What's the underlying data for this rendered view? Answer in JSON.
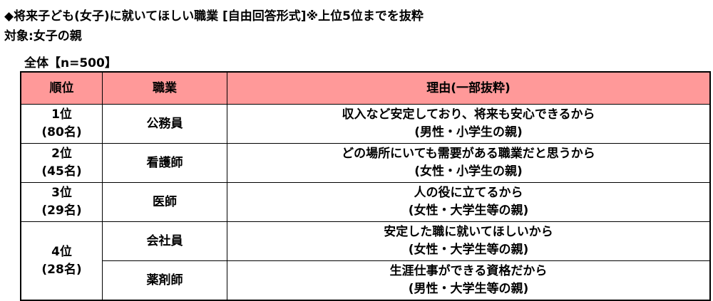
{
  "title": "◆将来子ども(女子)に就いてほしい職業 [自由回答形式]※上位5位までを抜粋",
  "subtitle": "対象:女子の親",
  "total": "全体【n=500】",
  "table": {
    "headers": [
      "順位",
      "職業",
      "理由(一部抜粋)"
    ],
    "header_color": "#ff9999",
    "ranks": [
      {
        "rank": "1位",
        "count": "(80名)"
      },
      {
        "rank": "2位",
        "count": "(45名)"
      },
      {
        "rank": "3位",
        "count": "(29名)"
      },
      {
        "rank": "4位",
        "count": "(28名)"
      }
    ],
    "rows": [
      {
        "job": "公務員",
        "reason": "収入など安定しており、将来も安心できるから",
        "respondent": "(男性・小学生の親)"
      },
      {
        "job": "看護師",
        "reason": "どの場所にいても需要がある職業だと思うから",
        "respondent": "(女性・小学生の親)"
      },
      {
        "job": "医師",
        "reason": "人の役に立てるから",
        "respondent": "(女性・大学生等の親)"
      },
      {
        "job": "会社員",
        "reason": "安定した職に就いてほしいから",
        "respondent": "(女性・大学生等の親)"
      },
      {
        "job": "薬剤師",
        "reason": "生涯仕事ができる資格だから",
        "respondent": "(男性・大学生等の親)"
      }
    ]
  }
}
